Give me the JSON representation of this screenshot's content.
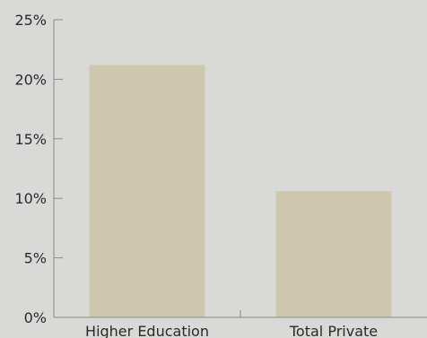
{
  "chart_data": {
    "type": "bar",
    "categories": [
      "Higher Education",
      "Total Private"
    ],
    "values": [
      21.2,
      10.6
    ],
    "y_unit": "%",
    "ylim": [
      0,
      25
    ],
    "yticks": [
      0,
      5,
      10,
      15,
      20,
      25
    ],
    "ytick_labels": [
      "0%",
      "5%",
      "10%",
      "15%",
      "20%",
      "25%"
    ],
    "title": "",
    "xlabel": "",
    "ylabel": "",
    "grid": false,
    "legend": "none"
  },
  "colors": {
    "background": "#d9dad7",
    "bar": "#cdc7ae",
    "axis": "#8a8a8a",
    "text": "#2a2a2a"
  }
}
